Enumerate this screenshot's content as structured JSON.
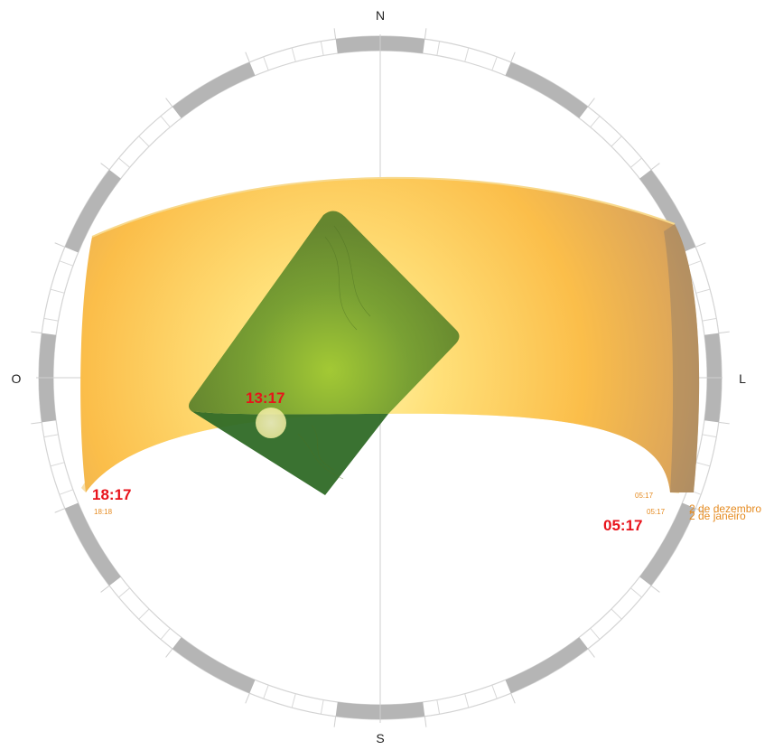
{
  "compass": {
    "north": "N",
    "south": "S",
    "east": "L",
    "west": "O"
  },
  "times": {
    "noon": "13:17",
    "sunset": "18:17",
    "sunset_alt": "18:18",
    "sunrise": "05:17",
    "sunrise_alt_1": "05:17",
    "sunrise_alt_2": "05:17"
  },
  "dates": {
    "first": "2 de dezembro",
    "second": "2 de janeiro"
  },
  "colors": {
    "time_label": "#e8131b",
    "date_label": "#e58a1f",
    "band_light": "#ffe38a",
    "band_mid": "#fbc046",
    "band_dark": "#b89260",
    "panel": "#4f8a2a",
    "panel_shade": "#2c6b22",
    "ring_segment": "#b5b5b5"
  }
}
